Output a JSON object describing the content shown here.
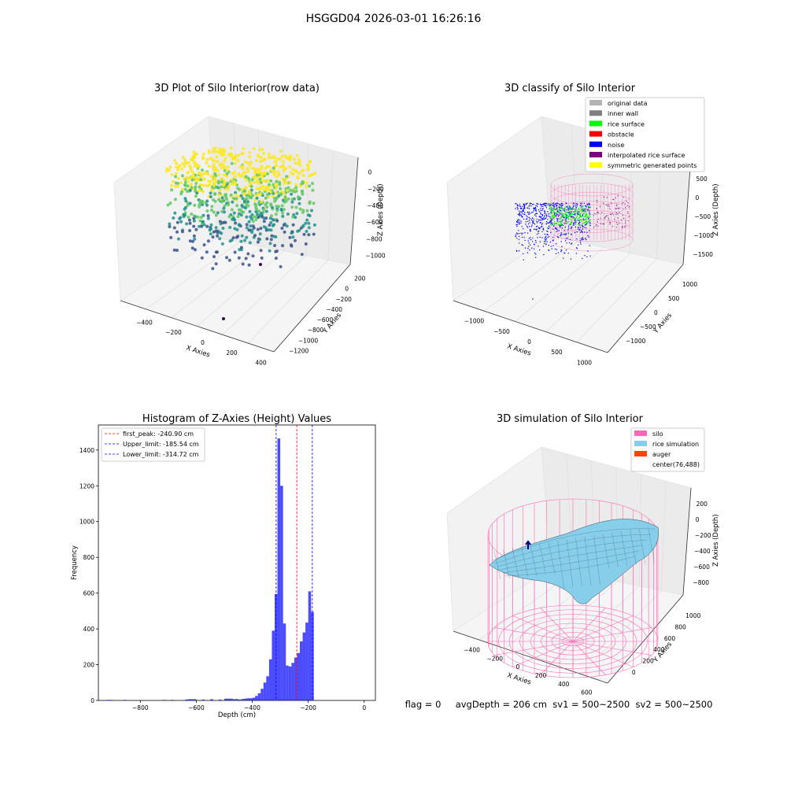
{
  "figure": {
    "suptitle": "HSGGD04 2026-03-01 16:26:16",
    "footer": {
      "flag": "flag = 0",
      "avg_depth": "avgDepth = 206 cm",
      "sv1": "sv1 = 500~2500",
      "sv2": "sv2 = 500~2500"
    }
  },
  "chart_data": [
    {
      "type": "scatter",
      "projection": "3d",
      "title": "3D Plot of Silo Interior(row data)",
      "xlabel": "X Axies",
      "ylabel": "Y Axies",
      "zlabel": "Z Axies (Depth)",
      "x_ticks": [
        -400,
        -200,
        0,
        200,
        400
      ],
      "y_ticks": [
        200,
        0,
        -200,
        -400,
        -600,
        -800,
        -1000,
        -1200
      ],
      "z_ticks": [
        0,
        -200,
        -400,
        -600,
        -800,
        -1000
      ],
      "colormap": "viridis",
      "colormap_colors": [
        "#440154",
        "#3b528b",
        "#21918c",
        "#5ec962",
        "#fde725"
      ]
    },
    {
      "type": "scatter",
      "projection": "3d",
      "title": "3D classify of Silo Interior",
      "xlabel": "X Axies",
      "ylabel": "Y Axies",
      "zlabel": "Z Axies (Depth)",
      "x_ticks": [
        -1000,
        -500,
        0,
        500,
        1000
      ],
      "y_ticks": [
        1000,
        500,
        0,
        -500,
        -1000
      ],
      "z_ticks": [
        500,
        0,
        -500,
        -1000,
        -1500
      ],
      "legend": {
        "location": "upper right",
        "entries": [
          {
            "label": "original data",
            "color": "#b3b3b3"
          },
          {
            "label": "inner wall",
            "color": "#808080"
          },
          {
            "label": "rice surface",
            "color": "#00ff00"
          },
          {
            "label": "obstacle",
            "color": "#ff0000"
          },
          {
            "label": "noise",
            "color": "#0000ff"
          },
          {
            "label": "interpolated rice surface",
            "color": "#800080"
          },
          {
            "label": "symmetric generated points",
            "color": "#ffff00"
          }
        ]
      },
      "wall_color": "#ff69b4"
    },
    {
      "type": "bar",
      "title": "Histogram of Z-Axies (Height) Values",
      "xlabel": "Depth (cm)",
      "ylabel": "Frequency",
      "xlim": [
        -950,
        40
      ],
      "ylim": [
        0,
        1540
      ],
      "x_ticks": [
        -800,
        -600,
        -400,
        -200,
        0
      ],
      "y_ticks": [
        0,
        200,
        400,
        600,
        800,
        1000,
        1200,
        1400
      ],
      "bar_color": "#0000ff",
      "bar_alpha": 0.7,
      "bins": [
        {
          "x0": -920,
          "x1": -900,
          "count": 3
        },
        {
          "x0": -860,
          "x1": -850,
          "count": 3
        },
        {
          "x0": -720,
          "x1": -710,
          "count": 3
        },
        {
          "x0": -690,
          "x1": -680,
          "count": 3
        },
        {
          "x0": -640,
          "x1": -630,
          "count": 5
        },
        {
          "x0": -630,
          "x1": -620,
          "count": 7
        },
        {
          "x0": -620,
          "x1": -610,
          "count": 7
        },
        {
          "x0": -610,
          "x1": -600,
          "count": 7
        },
        {
          "x0": -580,
          "x1": -570,
          "count": 5
        },
        {
          "x0": -550,
          "x1": -540,
          "count": 7
        },
        {
          "x0": -520,
          "x1": -510,
          "count": 5
        },
        {
          "x0": -500,
          "x1": -490,
          "count": 10
        },
        {
          "x0": -490,
          "x1": -480,
          "count": 10
        },
        {
          "x0": -480,
          "x1": -470,
          "count": 10
        },
        {
          "x0": -470,
          "x1": -460,
          "count": 7
        },
        {
          "x0": -460,
          "x1": -450,
          "count": 8
        },
        {
          "x0": -450,
          "x1": -440,
          "count": 5
        },
        {
          "x0": -440,
          "x1": -430,
          "count": 8
        },
        {
          "x0": -430,
          "x1": -420,
          "count": 10
        },
        {
          "x0": -420,
          "x1": -410,
          "count": 12
        },
        {
          "x0": -410,
          "x1": -400,
          "count": 12
        },
        {
          "x0": -400,
          "x1": -390,
          "count": 15
        },
        {
          "x0": -390,
          "x1": -380,
          "count": 25
        },
        {
          "x0": -380,
          "x1": -370,
          "count": 40
        },
        {
          "x0": -370,
          "x1": -360,
          "count": 65
        },
        {
          "x0": -360,
          "x1": -350,
          "count": 100
        },
        {
          "x0": -350,
          "x1": -340,
          "count": 135
        },
        {
          "x0": -340,
          "x1": -330,
          "count": 230
        },
        {
          "x0": -330,
          "x1": -320,
          "count": 390
        },
        {
          "x0": -320,
          "x1": -310,
          "count": 595
        },
        {
          "x0": -310,
          "x1": -300,
          "count": 1465
        },
        {
          "x0": -300,
          "x1": -290,
          "count": 1200
        },
        {
          "x0": -290,
          "x1": -280,
          "count": 430
        },
        {
          "x0": -280,
          "x1": -270,
          "count": 195
        },
        {
          "x0": -270,
          "x1": -260,
          "count": 190
        },
        {
          "x0": -260,
          "x1": -250,
          "count": 210
        },
        {
          "x0": -250,
          "x1": -240,
          "count": 240
        },
        {
          "x0": -240,
          "x1": -230,
          "count": 265
        },
        {
          "x0": -230,
          "x1": -220,
          "count": 330
        },
        {
          "x0": -220,
          "x1": -210,
          "count": 380
        },
        {
          "x0": -210,
          "x1": -200,
          "count": 435
        },
        {
          "x0": -200,
          "x1": -190,
          "count": 610
        },
        {
          "x0": -190,
          "x1": -180,
          "count": 495
        }
      ],
      "vlines": [
        {
          "label": "first_peak: -240.90 cm",
          "x": -240.9,
          "color": "#ff0000",
          "style": "dashed"
        },
        {
          "label": "Upper_limit: -185.54 cm",
          "x": -185.54,
          "color": "#0000ff",
          "style": "dashed"
        },
        {
          "label": "Lower_limit: -314.72 cm",
          "x": -314.72,
          "color": "#0000ff",
          "style": "dashed"
        }
      ],
      "legend_location": "upper left",
      "x_tick_labels": [
        "−800",
        "−600",
        "−400",
        "−200",
        "0"
      ],
      "y_tick_labels": [
        "0",
        "200",
        "400",
        "600",
        "800",
        "1000",
        "1200",
        "1400"
      ]
    },
    {
      "type": "surface",
      "projection": "3d",
      "title": "3D simulation of Silo Interior",
      "xlabel": "X Axies",
      "ylabel": "Y Axies",
      "zlabel": "Z Axies (Depth)",
      "x_ticks": [
        -400,
        -200,
        0,
        200,
        400,
        600
      ],
      "y_ticks": [
        0,
        200,
        400,
        600,
        800,
        1000
      ],
      "z_ticks": [
        200,
        0,
        -200,
        -400,
        -600,
        -800
      ],
      "legend": {
        "location": "upper right",
        "entries": [
          {
            "label": "silo",
            "color": "#ff69b4"
          },
          {
            "label": "rice simulation",
            "color": "#87ceeb"
          },
          {
            "label": "auger",
            "color": "#ff4500"
          },
          {
            "label": "center(76,488)",
            "color": ""
          }
        ]
      },
      "center": [
        76,
        488
      ]
    }
  ]
}
